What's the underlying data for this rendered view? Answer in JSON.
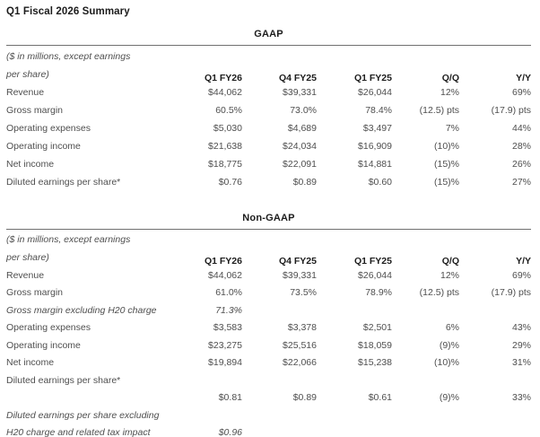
{
  "page": {
    "title": "Q1 Fiscal 2026 Summary"
  },
  "colors": {
    "background": "#ffffff",
    "heading_text": "#1c1c1c",
    "body_text": "#4f4f4f",
    "rule": "#707070"
  },
  "tables": [
    {
      "section_title": "GAAP",
      "caption_line1": "($ in millions, except earnings",
      "caption_line2": "per share)",
      "columns": [
        "Q1 FY26",
        "Q4 FY25",
        "Q1 FY25",
        "Q/Q",
        "Y/Y"
      ],
      "rows": [
        {
          "label": "Revenue",
          "italic": false,
          "values": [
            "$44,062",
            "$39,331",
            "$26,044",
            "12%",
            "69%"
          ]
        },
        {
          "label": "Gross margin",
          "italic": false,
          "values": [
            "60.5%",
            "73.0%",
            "78.4%",
            "(12.5) pts",
            "(17.9) pts"
          ]
        },
        {
          "label": "Operating expenses",
          "italic": false,
          "values": [
            "$5,030",
            "$4,689",
            "$3,497",
            "7%",
            "44%"
          ]
        },
        {
          "label": "Operating income",
          "italic": false,
          "values": [
            "$21,638",
            "$24,034",
            "$16,909",
            "(10)%",
            "28%"
          ]
        },
        {
          "label": "Net income",
          "italic": false,
          "values": [
            "$18,775",
            "$22,091",
            "$14,881",
            "(15)%",
            "26%"
          ]
        },
        {
          "label": "Diluted earnings per share*",
          "italic": false,
          "values": [
            "$0.76",
            "$0.89",
            "$0.60",
            "(15)%",
            "27%"
          ]
        }
      ]
    },
    {
      "section_title": "Non-GAAP",
      "caption_line1": "($ in millions, except earnings",
      "caption_line2": "per share)",
      "columns": [
        "Q1 FY26",
        "Q4 FY25",
        "Q1 FY25",
        "Q/Q",
        "Y/Y"
      ],
      "rows": [
        {
          "label": "Revenue",
          "italic": false,
          "values": [
            "$44,062",
            "$39,331",
            "$26,044",
            "12%",
            "69%"
          ]
        },
        {
          "label": "Gross margin",
          "italic": false,
          "values": [
            "61.0%",
            "73.5%",
            "78.9%",
            "(12.5) pts",
            "(17.9) pts"
          ]
        },
        {
          "label": "Gross margin excluding H20 charge",
          "italic": true,
          "values": [
            "71.3%",
            "",
            "",
            "",
            ""
          ]
        },
        {
          "label": "Operating expenses",
          "italic": false,
          "values": [
            "$3,583",
            "$3,378",
            "$2,501",
            "6%",
            "43%"
          ]
        },
        {
          "label": "Operating income",
          "italic": false,
          "values": [
            "$23,275",
            "$25,516",
            "$18,059",
            "(9)%",
            "29%"
          ]
        },
        {
          "label": "Net income",
          "italic": false,
          "values": [
            "$19,894",
            "$22,066",
            "$15,238",
            "(10)%",
            "31%"
          ]
        },
        {
          "label": "Diluted earnings per share*",
          "italic": false,
          "values": [
            "",
            "",
            "",
            "",
            ""
          ]
        },
        {
          "label": "",
          "italic": false,
          "values": [
            "$0.81",
            "$0.89",
            "$0.61",
            "(9)%",
            "33%"
          ]
        },
        {
          "label": "Diluted earnings per share excluding",
          "italic": true,
          "values": [
            "",
            "",
            "",
            "",
            ""
          ]
        },
        {
          "label": "H20 charge and related tax impact",
          "italic": true,
          "values": [
            "$0.96",
            "",
            "",
            "",
            ""
          ]
        }
      ]
    }
  ]
}
